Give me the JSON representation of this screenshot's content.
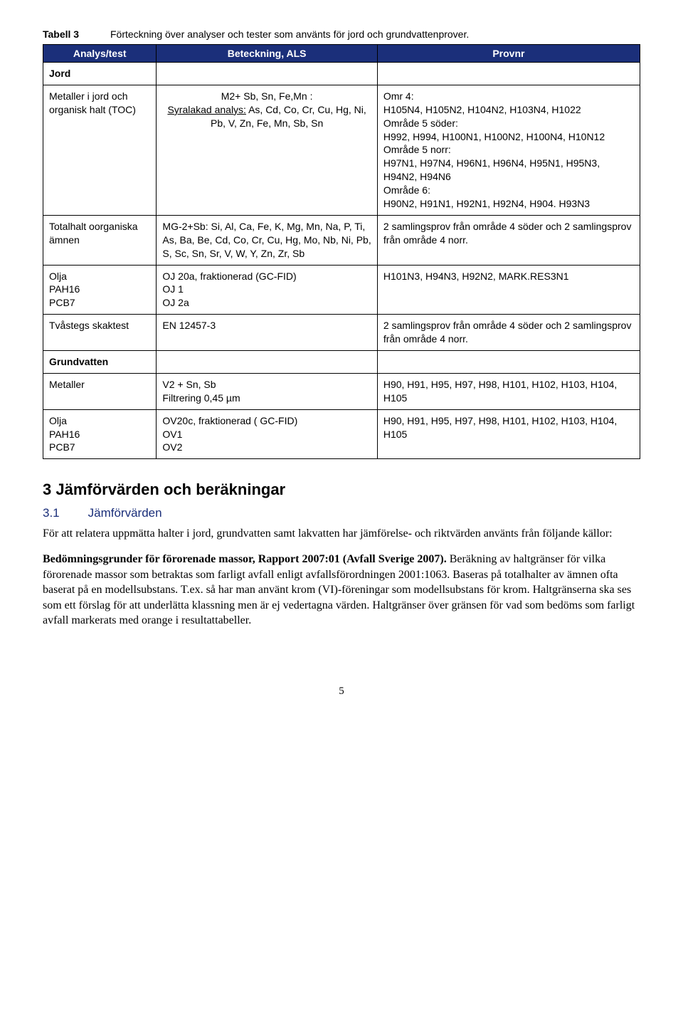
{
  "table": {
    "label": "Tabell 3",
    "caption": "Förteckning över analyser och tester som använts för jord och grundvattenprover.",
    "headers": [
      "Analys/test",
      "Beteckning, ALS",
      "Provnr"
    ],
    "section1": "Jord",
    "rows": [
      {
        "analys": "Metaller i jord och organisk halt (TOC)",
        "beteckning": {
          "line1": "M2+ Sb, Sn, Fe,Mn :",
          "line2_underlined": "Syralakad analys:",
          "line2_rest": " As, Cd, Co, Cr, Cu, Hg, Ni, Pb, V, Zn, Fe, Mn, Sb, Sn"
        },
        "provnr": "Omr 4:\nH105N4, H105N2, H104N2, H103N4, H1022\nOmråde 5 söder:\nH992, H994, H100N1, H100N2, H100N4, H10N12\nOmråde 5 norr:\nH97N1, H97N4,  H96N1, H96N4, H95N1, H95N3, H94N2, H94N6\nOmråde 6:\nH90N2, H91N1, H92N1, H92N4, H904. H93N3"
      },
      {
        "analys": "Totalhalt oorganiska ämnen",
        "beteckning_plain": "MG-2+Sb: Si, Al, Ca, Fe, K, Mg, Mn, Na, P, Ti, As, Ba, Be, Cd, Co, Cr, Cu, Hg, Mo, Nb, Ni, Pb, S, Sc, Sn, Sr, V, W, Y, Zn, Zr, Sb",
        "provnr": "2 samlingsprov från område 4 söder och 2 samlingsprov från område 4 norr."
      },
      {
        "analys": "Olja\nPAH16\nPCB7",
        "beteckning_plain": "OJ 20a, fraktionerad (GC-FID)\nOJ 1\nOJ 2a",
        "provnr": "H101N3, H94N3, H92N2, MARK.RES3N1"
      },
      {
        "analys": "Tvåstegs skaktest",
        "beteckning_plain": "EN 12457-3",
        "provnr": "2 samlingsprov från område 4 söder och 2 samlingsprov från område 4 norr."
      }
    ],
    "section2": "Grundvatten",
    "rows2": [
      {
        "analys": "Metaller",
        "beteckning_plain": "V2 + Sn, Sb\nFiltrering 0,45 µm",
        "provnr": "H90, H91, H95, H97, H98, H101, H102, H103, H104, H105"
      },
      {
        "analys": "Olja\nPAH16\nPCB7",
        "beteckning_plain": "OV20c, fraktionerad ( GC-FID)\nOV1\nOV2",
        "provnr": "H90, H91, H95, H97, H98, H101, H102, H103, H104, H105"
      }
    ]
  },
  "section_heading": "3   Jämförvärden och beräkningar",
  "subsection": {
    "num": "3.1",
    "title": "Jämförvärden"
  },
  "paragraphs": {
    "p1": "För att relatera uppmätta halter i jord, grundvatten samt lakvatten har jämförelse- och riktvärden använts från följande källor:",
    "p2_bold": "Bedömningsgrunder för förorenade massor, Rapport 2007:01 (Avfall Sverige 2007).",
    "p2_rest": " Beräkning av haltgränser för vilka förorenade massor som betraktas som farligt avfall enligt avfallsförordningen 2001:1063. Baseras på totalhalter av ämnen ofta baserat på en modellsubstans. T.ex. så har man använt krom (VI)-föreningar som modellsubstans för krom. Haltgränserna ska ses som ett förslag för att underlätta klassning men är ej vedertagna värden. Haltgränser över gränsen för vad som bedöms som farligt avfall markerats med orange i resultattabeller."
  },
  "page_number": "5"
}
